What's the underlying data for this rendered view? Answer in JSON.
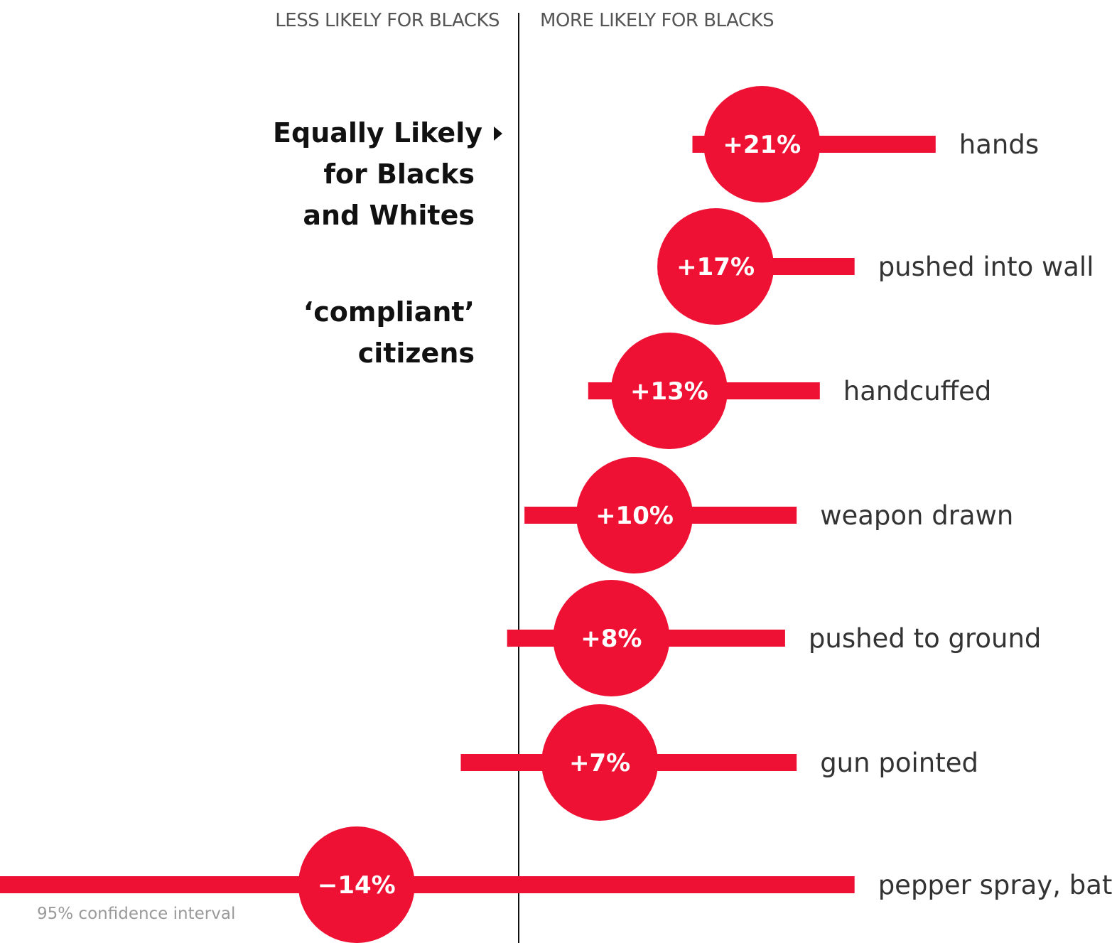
{
  "header": {
    "left_label": "LESS LIKELY FOR BLACKS",
    "right_label": "MORE LIKELY FOR BLACKS"
  },
  "annotations": {
    "equal_lines": [
      "Equally Likely",
      "for Blacks",
      "and Whites"
    ],
    "compliant_lines": [
      "‘compliant’",
      "citizens"
    ]
  },
  "ci_note": "95% confidence interval",
  "colors": {
    "accent": "#ee1133",
    "axis": "#111111",
    "text": "#333333"
  },
  "chart_data": {
    "type": "dot-with-interval",
    "xlabel": "",
    "ylabel": "",
    "xlim": [
      -46,
      41
    ],
    "series": [
      {
        "category": "hands",
        "value": 21,
        "ci": [
          15,
          36
        ],
        "label": "+21%"
      },
      {
        "category": "pushed into wall",
        "value": 17,
        "ci": [
          12,
          29
        ],
        "label": "+17%"
      },
      {
        "category": "handcuffed",
        "value": 13,
        "ci": [
          6,
          26
        ],
        "label": "+13%"
      },
      {
        "category": "weapon drawn",
        "value": 10,
        "ci": [
          0.5,
          24
        ],
        "label": "+10%"
      },
      {
        "category": "pushed to ground",
        "value": 8,
        "ci": [
          -1,
          23
        ],
        "label": "+8%"
      },
      {
        "category": "gun pointed",
        "value": 7,
        "ci": [
          -5,
          24
        ],
        "label": "+7%"
      },
      {
        "category": "pepper spray, baton",
        "value": -14,
        "ci": [
          -46,
          29
        ],
        "label": "−14%"
      }
    ]
  }
}
